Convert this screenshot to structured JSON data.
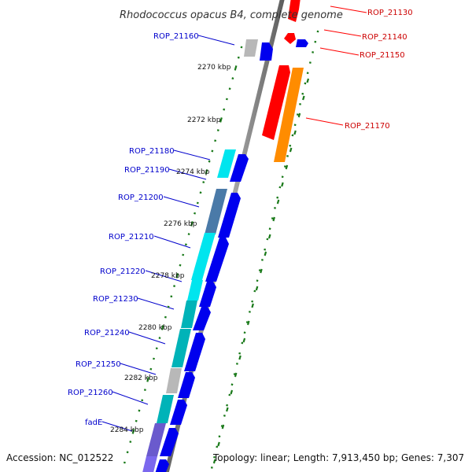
{
  "title": "Rhodococcus opacus B4, complete genome",
  "footer": {
    "accession": "Accession: NC_012522",
    "summary": "Topology: linear; Length: 7,913,450 bp; Genes: 7,307"
  },
  "axis_ticks": [
    "2270 kbp",
    "2272 kbp",
    "2274 kbp",
    "2276 kbp",
    "2278 kbp",
    "2280 kbp",
    "2282 kbp",
    "2284 kbp"
  ],
  "genes_forward": [
    {
      "label": "ROP_21130",
      "color": "#ff0000"
    },
    {
      "label": "ROP_21140",
      "color": "#ff0000"
    },
    {
      "label": "ROP_21150",
      "color": "#ff0000"
    },
    {
      "label": "ROP_21170",
      "color": "#ff0000"
    }
  ],
  "genes_reverse": [
    {
      "label": "ROP_21160",
      "color": "#0000bb"
    },
    {
      "label": "ROP_21180",
      "color": "#0000bb"
    },
    {
      "label": "ROP_21190",
      "color": "#0000bb"
    },
    {
      "label": "ROP_21200",
      "color": "#0000bb"
    },
    {
      "label": "ROP_21210",
      "color": "#0000bb"
    },
    {
      "label": "ROP_21220",
      "color": "#0000bb"
    },
    {
      "label": "ROP_21230",
      "color": "#0000bb"
    },
    {
      "label": "ROP_21240",
      "color": "#0000bb"
    },
    {
      "label": "ROP_21250",
      "color": "#0000bb"
    },
    {
      "label": "ROP_21260",
      "color": "#0000bb"
    },
    {
      "label": "fadE",
      "color": "#0000bb"
    }
  ],
  "colors": {
    "forward_gene": "#ff0000",
    "forward_cog": "#ff8c00",
    "reverse_gene": "#0000ee",
    "cyan": "#00e5ee",
    "teal": "#00b3b8",
    "steel": "#4a7aa8",
    "gray": "#b8b8b8",
    "purple": "#7b68ee",
    "backbone": "#808080",
    "tick": "#1a7a1a"
  }
}
